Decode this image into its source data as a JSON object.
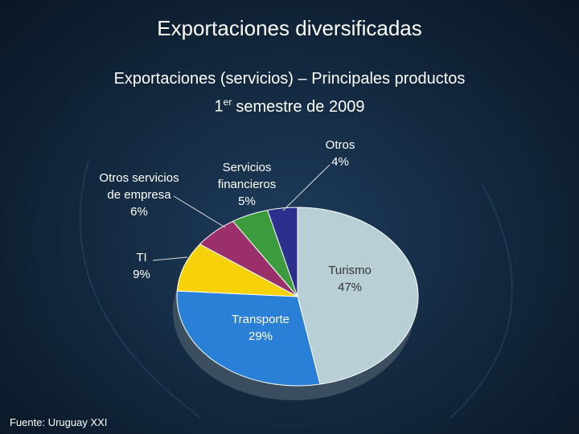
{
  "chart_data": {
    "type": "pie",
    "title": "Exportaciones diversificadas",
    "subtitle": "Exportaciones (servicios) – Principales productos",
    "period": {
      "number": "1",
      "suffix": "er",
      "text": "semestre de 2009"
    },
    "categories": [
      "Turismo",
      "Transporte",
      "TI",
      "Otros servicios de empresa",
      "Servicios financieros",
      "Otros"
    ],
    "values": [
      47,
      29,
      9,
      6,
      5,
      4
    ],
    "value_labels": [
      "47%",
      "29%",
      "9%",
      "6%",
      "5%",
      "4%"
    ],
    "colors": [
      "#b9cfd6",
      "#2a80d6",
      "#f7d20a",
      "#9a2f6b",
      "#3c9b3c",
      "#2c2f8c"
    ],
    "source": "Fuente: Uruguay XXI"
  }
}
